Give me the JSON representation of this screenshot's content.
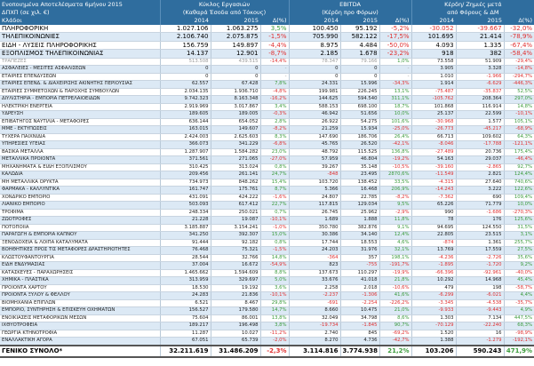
{
  "header": {
    "title": "Ενοποιημένα Αποτελέσματα 6μήνου 2015",
    "subtitle": "ΔΠΧΠ (σε χιλ. €)",
    "sector_label": "Κλάδοι",
    "group1_line1": "Κύκλος Εργασιών",
    "group1_line2": "(Καθαρά Έσοδα από Τόκους)",
    "group2_line1": "EBITDA",
    "group2_line2": "(Κέρδη προ Φόρων)",
    "group3_line1": "Κέρδη/ Ζημιές μετά",
    "group3_line2": "από Φόρους & ΔΜ",
    "y2014": "2014",
    "y2015": "2015",
    "delta": "Δ(%)"
  },
  "big_rows": [
    [
      "ΠΛΗΡΟΦΟΡΙΚΗ",
      "1.027.106",
      "1.063.275",
      "3,5%",
      "100.450",
      "95.192",
      "-5,2%",
      "-30.052",
      "-39.667",
      "-32,0%"
    ],
    [
      "ΤΗΛΕΠΙΚΟΙΝΩΝΙΕΣ",
      "2.106.740",
      "2.075.875",
      "-1,5%",
      "705.990",
      "582.122",
      "-17,5%",
      "101.695",
      "21.414",
      "-78,9%"
    ],
    [
      "ΕΙΔΗ - ΛΥΣΕΙΣ ΠΛΗΡΟΦΟΡΙΚΗΣ",
      "156.759",
      "149.897",
      "-4,4%",
      "8.975",
      "4.484",
      "-50,0%",
      "4.093",
      "1.335",
      "-67,4%"
    ],
    [
      "ΕΞΟΠΛΙΣΜΟΣ ΤΗΛΕΠΙΚΟΙΝΩΝΙΑΣ",
      "14.137",
      "12.901",
      "-8,7%",
      "2.185",
      "1.678",
      "-23,2%",
      "918",
      "382",
      "-58,4%"
    ]
  ],
  "rows": [
    [
      "ΤΡΑΠΕΖΕΣ",
      "513.508",
      "439.515",
      "-14,4%",
      "78.347",
      "79.166",
      "1,0%",
      "73.558",
      "51.909",
      "-29,4%"
    ],
    [
      "ΑΣΦΑΛΕΙΕΣ - ΜΕΣΙΤΕΣ ΑΣΦΑΛΙΣΕΩΝ",
      "0",
      "0",
      "-",
      "0",
      "0",
      "-",
      "3.905",
      "3.328",
      "-14,8%"
    ],
    [
      "ΕΤΑΙΡΙΕΣ ΕΠΕΝΔΥΣΕΩΝ",
      "0",
      "0",
      "-",
      "0",
      "0",
      "-",
      "1.010",
      "-1.966",
      "-294,7%"
    ],
    [
      "ΕΤΑΙΡΙΕΣ ΕΠΕΝΔ. & ΔΙΑΧΕΙΡΙΣΗΣ ΑΚΙΝΗΤΗΣ ΠΕΡΙΟΥΣΙΑΣ",
      "62.557",
      "67.428",
      "7,8%",
      "24.331",
      "15.996",
      "-34,3%",
      "1.914",
      "-6.629",
      "-446,3%"
    ],
    [
      "ΕΤΑΙΡΙΕΣ ΣΥΜΜΕΤΟΧΩΝ & ΠΑΡΟΧΗΣ ΣΥΜΒΟΥΛΩΝ",
      "2.034.135",
      "1.936.710",
      "-4,8%",
      "199.981",
      "226.245",
      "13,1%",
      "-75.487",
      "-35.837",
      "52,5%"
    ],
    [
      "ΔΙΥΛΙΣΤΗΡΙΑ - ΕΜΠΟΡΙΑ ΠΕΤΡΕΛΑΙΟΕΙΔΩΝ",
      "9.742.323",
      "8.163.348",
      "-16,2%",
      "144.625",
      "594.540",
      "311,1%",
      "-105.762",
      "208.364",
      "297,0%"
    ],
    [
      "ΗΛΕΚΤΡΙΚΗ ΕΝΕΡΓΕΙΑ",
      "2.919.969",
      "3.017.867",
      "3,4%",
      "588.153",
      "698.100",
      "18,7%",
      "101.868",
      "116.914",
      "14,8%"
    ],
    [
      "ΥΔΡΕΥΣΗ",
      "189.605",
      "189.005",
      "-0,3%",
      "46.942",
      "51.656",
      "10,0%",
      "25.137",
      "22.599",
      "-10,1%"
    ],
    [
      "ΕΠΙΒΑΤΗΓΟΣ ΝΑΥΤΙΛΙΑ - ΜΕΤΑΦΟΡΕΣ",
      "636.144",
      "654.052",
      "2,8%",
      "26.922",
      "54.275",
      "101,6%",
      "-30.968",
      "1.577",
      "105,1%"
    ],
    [
      "ΜΜΕ - ΕΚΤΥΠΩΣΕΙΣ",
      "163.015",
      "149.607",
      "-8,2%",
      "21.259",
      "15.934",
      "-25,0%",
      "-26.773",
      "-45.217",
      "-68,9%"
    ],
    [
      "ΤΥΧΕΡΑ ΠΑΙΧΝΙΔΙΑ",
      "2.424.003",
      "2.625.603",
      "8,3%",
      "147.690",
      "186.706",
      "26,4%",
      "66.713",
      "109.602",
      "64,3%"
    ],
    [
      "ΥΠΗΡΕΣΙΕΣ ΥΓΕΙΑΣ",
      "366.073",
      "341.229",
      "-6,8%",
      "45.765",
      "26.520",
      "-42,1%",
      "-8.046",
      "-17.788",
      "-121,1%"
    ],
    [
      "ΒΑΣΙΚΑ ΜΕΤΑΛΛΑ",
      "1.287.907",
      "1.584.282",
      "23,0%",
      "48.792",
      "115.525",
      "136,8%",
      "-27.489",
      "20.736",
      "175,4%"
    ],
    [
      "ΜΕΤΑΛΛΙΚΑ ΠΡΟΙΟΝΤΑ",
      "371.561",
      "271.065",
      "-27,0%",
      "57.959",
      "46.804",
      "-19,2%",
      "54.163",
      "29.037",
      "-46,4%"
    ],
    [
      "ΜΗΧΑΝΗΜΑΤΑ & ΕΙΔΗ ΕΞΟΠΛΙΣΜΟΥ",
      "310.425",
      "313.024",
      "0,8%",
      "39.267",
      "35.148",
      "-10,5%",
      "-39.160",
      "-2.865",
      "92,7%"
    ],
    [
      "ΚΑΛΩΔΙΑ",
      "209.456",
      "261.141",
      "24,7%",
      "-848",
      "23.495",
      "2870,6%",
      "-11.549",
      "2.821",
      "124,4%"
    ],
    [
      "ΜΗ ΜΕΤΑΛΛΙΚΑ ΟΡΥΚΤΑ",
      "734.973",
      "848.262",
      "15,4%",
      "103.720",
      "138.452",
      "33,5%",
      "-4.315",
      "27.640",
      "740,6%"
    ],
    [
      "ΦΑΡΜΑΚΑ - ΚΑΛΛΥΝΤΙΚΑ",
      "161.747",
      "175.761",
      "8,7%",
      "5.366",
      "16.468",
      "206,9%",
      "-14.243",
      "3.222",
      "122,6%"
    ],
    [
      "ΧΟΝΔΡΙΚΟ ΕΜΠΟΡΙΟ",
      "431.091",
      "424.222",
      "-1,6%",
      "24.807",
      "22.785",
      "-8,2%",
      "-7.362",
      "690",
      "109,4%"
    ],
    [
      "ΛΙΑΝΙΚΟ ΕΜΠΟΡΙΟ",
      "503.093",
      "617.412",
      "22,7%",
      "117.815",
      "129.034",
      "9,5%",
      "65.226",
      "71.779",
      "10,0%"
    ],
    [
      "ΤΡΟΦΙΜΑ",
      "248.334",
      "250.021",
      "0,7%",
      "26.745",
      "25.962",
      "-2,9%",
      "990",
      "-1.686",
      "-270,3%"
    ],
    [
      "ΖΩΟΤΡΟΦΕΣ",
      "21.228",
      "19.087",
      "-10,1%",
      "1.689",
      "1.888",
      "11,8%",
      "78",
      "176",
      "125,6%"
    ],
    [
      "ΠΟΤΟΠΟΙΙΑ",
      "3.185.887",
      "3.154.241",
      "-1,0%",
      "350.780",
      "382.876",
      "9,1%",
      "94.695",
      "124.550",
      "31,5%"
    ],
    [
      "ΠΑΡΑΓΩΓΗ & ΕΜΠΟΡΙΑ ΚΑΠΝΟΥ",
      "341.250",
      "392.307",
      "15,0%",
      "30.386",
      "34.140",
      "12,4%",
      "22.805",
      "23.515",
      "3,1%"
    ],
    [
      "ΞΕΝΟΔΟΧΕΙΑ & ΛΟΙΠΑ ΚΑΤΑΛΥΜΑΤΑ",
      "91.444",
      "92.182",
      "0,8%",
      "17.744",
      "18.553",
      "4,6%",
      "-874",
      "1.361",
      "255,7%"
    ],
    [
      "ΒΟΗΘΗΤΙΚΕΣ ΠΡΟΣ ΤΙΣ ΜΕΤΑΦΟΡΕΣ ΔΡΑΣΤΗΡΙΟΤΗΤΕΣ",
      "76.468",
      "75.321",
      "-1,5%",
      "24.203",
      "31.976",
      "32,1%",
      "13.769",
      "17.559",
      "27,5%"
    ],
    [
      "ΚΛΩΣΤΟΥΦΑΝΤΟΥΡΓΙΑ",
      "28.544",
      "32.766",
      "14,8%",
      "-364",
      "357",
      "198,1%",
      "-4.236",
      "-2.726",
      "35,6%"
    ],
    [
      "ΕΙΔΗ ΕΝΔΥΜΑΣΙΑΣ",
      "37.004",
      "16.672",
      "-54,9%",
      "823",
      "-755",
      "-191,7%",
      "-1.895",
      "-1.720",
      "9,2%"
    ],
    [
      "ΚΑΤΑΣΚΕΥΕΣ - ΠΑΡΑΧΩΡΗΣΕΙΣ",
      "1.465.662",
      "1.594.609",
      "8,8%",
      "137.673",
      "110.297",
      "-19,9%",
      "-66.396",
      "-92.961",
      "-40,0%"
    ],
    [
      "ΧΗΜΙΚΑ - ΠΛΑΣΤΙΚΑ",
      "313.959",
      "329.697",
      "5,0%",
      "33.676",
      "41.018",
      "21,8%",
      "10.292",
      "14.968",
      "45,4%"
    ],
    [
      "ΠΡΟΙΟΝΤΑ ΧΑΡΤΟΥ",
      "18.530",
      "19.192",
      "3,6%",
      "2.258",
      "2.018",
      "-10,6%",
      "479",
      "198",
      "-58,7%"
    ],
    [
      "ΠΡΟΙΟΝΤΑ ΞΥΛΟΥ & ΦΕΛΛΟΥ",
      "24.283",
      "21.836",
      "-10,1%",
      "-2.237",
      "-1.306",
      "41,6%",
      "-6.299",
      "-6.021",
      "4,4%"
    ],
    [
      "ΒΙΟΜΗΧΑΝΙΑ ΕΠΙΠΛΩΝ",
      "6.521",
      "8.467",
      "29,8%",
      "-691",
      "-2.254",
      "-226,2%",
      "-3.345",
      "-4.538",
      "-35,7%"
    ],
    [
      "ΕΜΠΟΡΙΟ, ΣΥΝΤΗΡΗΣΗ & ΕΠΙΣΚΕΥΗ ΟΧΗΜΑΤΩΝ",
      "156.527",
      "179.580",
      "14,7%",
      "8.660",
      "10.475",
      "21,0%",
      "-9.933",
      "-9.443",
      "4,9%"
    ],
    [
      "ΕΝΟΙΚΙΑΣΕΙΣ ΜΕΤΑΦΟΡΙΚΩΝ ΜΕΣΩΝ",
      "75.604",
      "86.001",
      "13,8%",
      "32.049",
      "34.798",
      "8,6%",
      "1.303",
      "7.134",
      "447,5%"
    ],
    [
      "ΙΧΘΥΟΤΡΟΦΕΙΑ",
      "189.217",
      "196.498",
      "3,8%",
      "-19.734",
      "-1.845",
      "90,7%",
      "-70.129",
      "-22.240",
      "68,3%"
    ],
    [
      "ΓΕΩΡΓΙΑ ΚΤΗΝΟΤΡΟΦΙΑ",
      "11.287",
      "10.027",
      "-11,2%",
      "2.740",
      "845",
      "-69,2%",
      "1.520",
      "16",
      "-98,9%"
    ],
    [
      "ΕΝΑΛΛΑΚΤΙΚΗ ΑΓΟΡΑ",
      "67.051",
      "65.739",
      "-2,0%",
      "8.270",
      "4.736",
      "-42,7%",
      "1.388",
      "-1.279",
      "-192,1%"
    ]
  ],
  "muted_rows": [
    "ΤΡΑΠΕΖΕΣ"
  ],
  "total": [
    "ΓΕΝΙΚΟ ΣΥΝΟΛΟ*",
    "32.211.619",
    "31.486.209",
    "-2,3%",
    "3.114.816",
    "3.774.938",
    "21,2%",
    "103.206",
    "590.243",
    "471,9%"
  ],
  "colors": {
    "header_bg": "#2f6d9e",
    "stripe": "#dce9f5",
    "positive": "#3a9a3a",
    "negative": "#e03030"
  }
}
